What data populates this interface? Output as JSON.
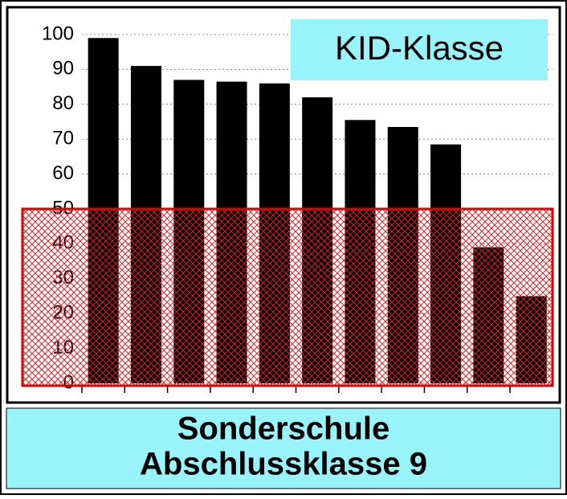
{
  "chart_data": {
    "type": "bar",
    "title": [
      "Sonderschule",
      "Abschlussklasse 9"
    ],
    "annotation": "KID-Klasse",
    "categories": [
      null,
      null,
      null,
      null,
      null,
      null,
      null,
      null,
      null,
      null,
      null
    ],
    "values": [
      99,
      91,
      87,
      86.5,
      86,
      82,
      75.5,
      73.5,
      68.5,
      39,
      25
    ],
    "color": "#000000",
    "ylim": [
      0,
      100
    ],
    "yticks": [
      0,
      10,
      20,
      30,
      40,
      50,
      60,
      70,
      80,
      90,
      100
    ],
    "grid": true
  }
}
